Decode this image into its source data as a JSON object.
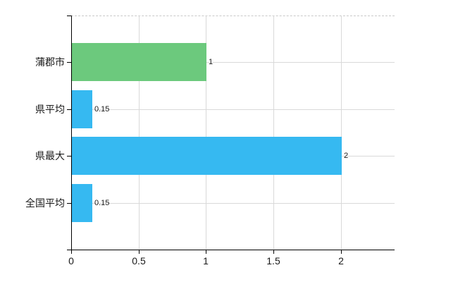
{
  "chart_data": {
    "type": "bar",
    "orientation": "horizontal",
    "title": "",
    "categories": [
      "蒲郡市",
      "県平均",
      "県最大",
      "全国平均"
    ],
    "values": [
      1,
      0.15,
      2,
      0.15
    ],
    "data_labels": [
      "1",
      "0.15",
      "2",
      "0.15"
    ],
    "bar_colors": [
      "#6cc97d",
      "#36b9f1",
      "#36b9f1",
      "#36b9f1"
    ],
    "x_tick_labels": [
      "0",
      "0.5",
      "1",
      "1.5",
      "2"
    ],
    "x_tick_values": [
      0,
      0.5,
      1,
      1.5,
      2
    ],
    "xlim": [
      0,
      2.4
    ],
    "grid": "on",
    "legend": "none",
    "colors": {
      "grid": "#d9d9d9",
      "axis": "#000000",
      "text": "#1a1a1a",
      "background": "#ffffff",
      "plot_top_border": "#c9c9c9"
    }
  }
}
